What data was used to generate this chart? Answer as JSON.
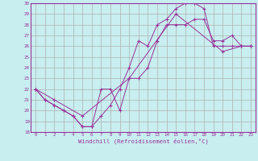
{
  "xlabel": "Windchill (Refroidissement éolien,°C)",
  "xlim": [
    -0.5,
    23.5
  ],
  "ylim": [
    18,
    30
  ],
  "xticks": [
    0,
    1,
    2,
    3,
    4,
    5,
    6,
    7,
    8,
    9,
    10,
    11,
    12,
    13,
    14,
    15,
    16,
    17,
    18,
    19,
    20,
    21,
    22,
    23
  ],
  "yticks": [
    18,
    19,
    20,
    21,
    22,
    23,
    24,
    25,
    26,
    27,
    28,
    29,
    30
  ],
  "bg_color": "#c8eef0",
  "grid_color": "#b0b0b0",
  "line_color": "#993399",
  "line1_x": [
    0,
    1,
    2,
    3,
    4,
    5,
    6,
    7,
    8,
    9,
    10,
    11,
    12,
    13,
    14,
    15,
    16,
    17,
    18,
    19,
    20,
    21,
    22,
    23
  ],
  "line1_y": [
    22,
    21,
    20.5,
    20,
    19.5,
    18.5,
    18.5,
    19.5,
    20.5,
    22,
    24,
    26.5,
    26,
    28,
    28.5,
    29.5,
    30,
    30,
    29.5,
    26,
    26,
    26,
    26,
    26
  ],
  "line2_x": [
    0,
    1,
    2,
    3,
    4,
    5,
    6,
    7,
    8,
    9,
    10,
    11,
    12,
    13,
    14,
    15,
    16,
    17,
    18,
    19,
    20,
    21,
    22,
    23
  ],
  "line2_y": [
    22,
    21,
    20.5,
    20,
    19.5,
    18.5,
    18.5,
    22,
    22,
    20,
    23,
    23,
    24,
    26.5,
    28,
    28,
    28,
    28.5,
    28.5,
    26.5,
    26.5,
    27,
    26,
    26
  ],
  "line3_x": [
    0,
    2,
    5,
    10,
    15,
    20,
    22,
    23
  ],
  "line3_y": [
    22,
    21,
    19.5,
    23,
    29,
    25.5,
    26,
    26
  ]
}
